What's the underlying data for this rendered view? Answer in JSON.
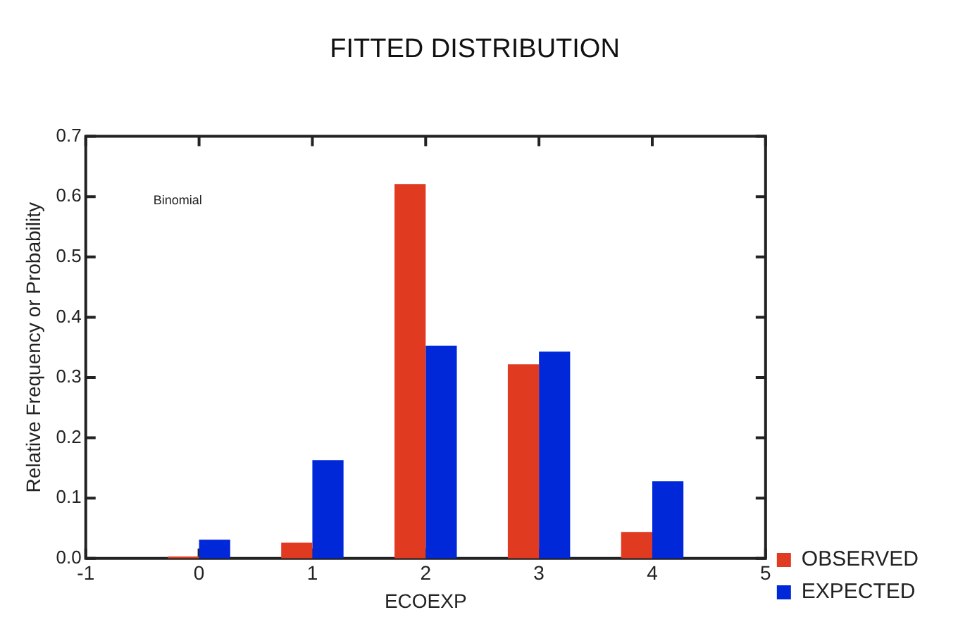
{
  "chart_data": {
    "type": "bar",
    "title": "FITTED DISTRIBUTION",
    "xlabel": "ECOEXP",
    "ylabel": "Relative Frequency or Probability",
    "x": [
      0,
      1,
      2,
      3,
      4
    ],
    "xlim": [
      -1,
      5
    ],
    "xticks": [
      -1,
      0,
      1,
      2,
      3,
      4,
      5
    ],
    "ylim": [
      0,
      0.7
    ],
    "yticks": [
      {
        "value": 0,
        "label": "0.0"
      },
      0.1,
      0.2,
      0.3,
      0.4,
      0.5,
      0.6,
      0.7
    ],
    "legend": "bottom right",
    "annotations": [
      "Binomial"
    ],
    "series": [
      {
        "name": "OBSERVED",
        "color": "#e03a20",
        "values": [
          0.003,
          0.026,
          0.621,
          0.322,
          0.044
        ]
      },
      {
        "name": "EXPECTED",
        "color": "#0028d8",
        "values": [
          0.031,
          0.163,
          0.353,
          0.343,
          0.128
        ]
      }
    ]
  }
}
